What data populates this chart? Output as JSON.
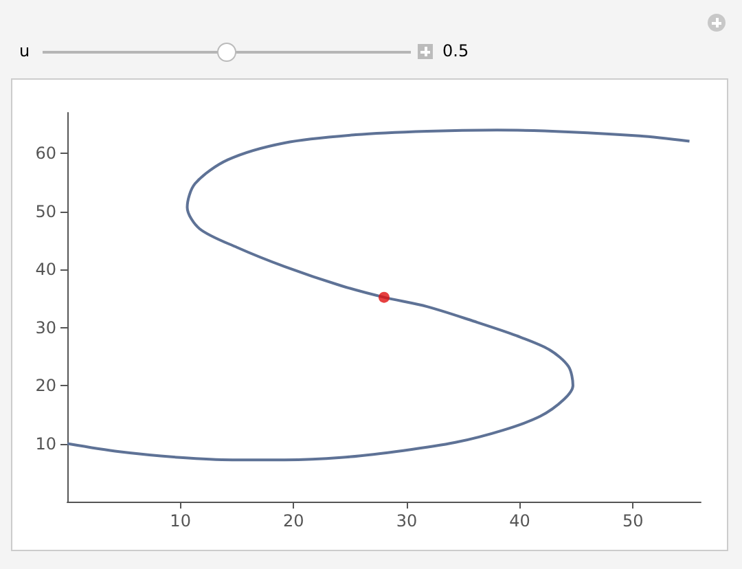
{
  "chart_data": {
    "type": "line",
    "annotations": [
      "u",
      "0.5"
    ],
    "xlim": [
      0,
      56
    ],
    "ylim": [
      0,
      67
    ],
    "xticks": [
      10,
      20,
      30,
      40,
      50
    ],
    "yticks": [
      10,
      20,
      30,
      40,
      50,
      60
    ],
    "grid": false,
    "line_style": "solid",
    "series": [
      {
        "marker": "none",
        "color": "#5e7296",
        "x": [
          0,
          4.6,
          10,
          14.6,
          19.2,
          24.2,
          29.7,
          34.3,
          38.5,
          41.8,
          43.9,
          44.7,
          44.3,
          42.6,
          39.7,
          35.9,
          31.8,
          28,
          24.2,
          19.2,
          15,
          11.7,
          10.6,
          11.3,
          14.2,
          19.2,
          25.5,
          31.8,
          38,
          44.3,
          50.6,
          55
        ],
        "values": [
          10,
          8.6,
          7.6,
          7.2,
          7.2,
          7.6,
          8.8,
          10.2,
          12.3,
          14.7,
          17.6,
          20,
          23.3,
          26.2,
          28.6,
          31.1,
          33.6,
          35.2,
          37.2,
          40.5,
          43.8,
          47,
          50.7,
          54.8,
          58.9,
          61.8,
          63.2,
          63.8,
          64,
          63.7,
          63,
          62.1
        ]
      },
      {
        "type": "scatter",
        "marker": "circle",
        "color": "#e01010",
        "x": [
          28
        ],
        "values": [
          35.2
        ]
      }
    ]
  }
}
